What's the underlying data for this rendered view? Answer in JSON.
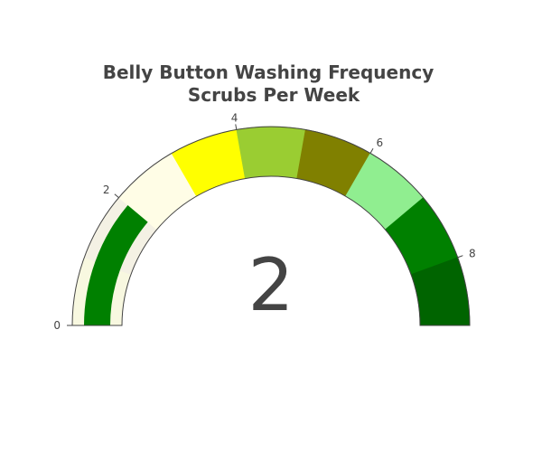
{
  "chart_data": {
    "type": "gauge",
    "title_lines": [
      "Belly Button Washing Frequency",
      "Scrubs Per Week"
    ],
    "value": 2,
    "range": [
      0,
      9
    ],
    "tick_values": [
      0,
      2,
      4,
      6,
      8
    ],
    "tick_labels": [
      "0",
      "2",
      "4",
      "6",
      "8"
    ],
    "steps": [
      {
        "range": [
          0,
          1
        ],
        "color": "#f8f8e0"
      },
      {
        "range": [
          1,
          2
        ],
        "color": "#f4f1e4"
      },
      {
        "range": [
          2,
          3
        ],
        "color": "#fffde6"
      },
      {
        "range": [
          3,
          4
        ],
        "color": "#ffff00"
      },
      {
        "range": [
          4,
          5
        ],
        "color": "#9acd32"
      },
      {
        "range": [
          5,
          6
        ],
        "color": "#808000"
      },
      {
        "range": [
          6,
          7
        ],
        "color": "#90ee90"
      },
      {
        "range": [
          7,
          8
        ],
        "color": "#008000"
      },
      {
        "range": [
          8,
          9
        ],
        "color": "#006400"
      }
    ],
    "bar_color": "#008000",
    "background_color": "#ffffff",
    "text_color": "#444444"
  }
}
